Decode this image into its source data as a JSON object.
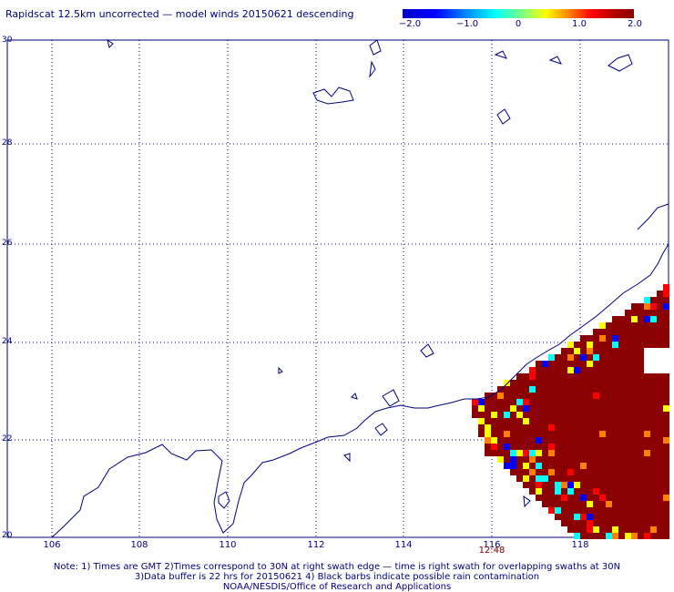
{
  "title": "Rapidscat 12.5km uncorrected — model winds 20150621 descending",
  "colorbar": {
    "labels": [
      "−2.0",
      "−1.0",
      "0",
      "1.0",
      "2.0"
    ],
    "values": [
      -2.0,
      -1.0,
      0,
      1.0,
      2.0
    ],
    "range": [
      -2.0,
      2.0
    ],
    "colors": [
      "#00008b",
      "#0000ff",
      "#00b0ff",
      "#00ffff",
      "#80ff80",
      "#ffff00",
      "#ff8000",
      "#ff0000",
      "#8b0000"
    ]
  },
  "map": {
    "lat_labels": [
      "30",
      "28",
      "26",
      "24",
      "22",
      "20"
    ],
    "lon_labels": [
      "106",
      "108",
      "110",
      "112",
      "114",
      "116",
      "118"
    ],
    "lat_range": [
      20,
      30
    ],
    "lon_range": [
      105,
      120
    ],
    "gridlines": true,
    "coastline_color": "#00007f",
    "swath_time": "12:48"
  },
  "notes": [
    "Note: 1) Times are GMT 2)Times correspond to 30N at right swath edge — time is right swath for overlapping swaths at 30N",
    "3)Data buffer is 22 hrs for 20150621 4) Black barbs indicate possible rain contamination",
    "NOAA/NESDIS/Office of Research and Applications"
  ]
}
